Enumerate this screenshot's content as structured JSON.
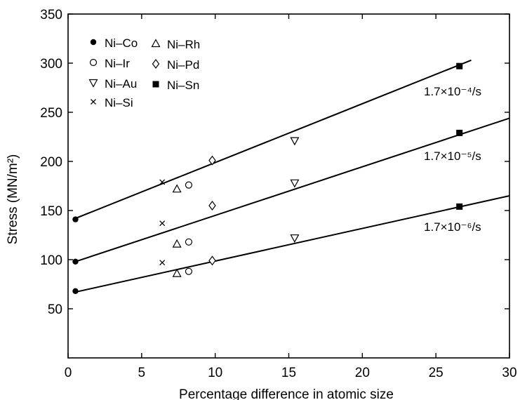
{
  "chart_data": {
    "type": "scatter",
    "xlabel": "Percentage difference in atomic size",
    "ylabel": "Stress (MN/m²)",
    "xlim": [
      0,
      30
    ],
    "ylim": [
      0,
      350
    ],
    "x_ticks": [
      0,
      5,
      10,
      15,
      20,
      25,
      30
    ],
    "y_ticks": [
      50,
      100,
      150,
      200,
      250,
      300,
      350
    ],
    "grid": false,
    "legend_position": "top-left",
    "legend": [
      {
        "name": "Ni–Co",
        "marker": "filled-circle"
      },
      {
        "name": "Ni–Ir",
        "marker": "open-circle"
      },
      {
        "name": "Ni–Au",
        "marker": "open-triangle-down"
      },
      {
        "name": "Ni–Si",
        "marker": "cross"
      },
      {
        "name": "Ni–Rh",
        "marker": "open-triangle-up"
      },
      {
        "name": "Ni–Pd",
        "marker": "open-diamond"
      },
      {
        "name": "Ni–Sn",
        "marker": "filled-square"
      }
    ],
    "series": [
      {
        "name": "Ni–Co",
        "marker": "filled-circle",
        "points": [
          {
            "x": 0.5,
            "y": 141
          },
          {
            "x": 0.5,
            "y": 98
          },
          {
            "x": 0.5,
            "y": 68
          }
        ]
      },
      {
        "name": "Ni–Si",
        "marker": "cross",
        "points": [
          {
            "x": 6.4,
            "y": 179
          },
          {
            "x": 6.4,
            "y": 137
          },
          {
            "x": 6.4,
            "y": 97
          }
        ]
      },
      {
        "name": "Ni–Rh",
        "marker": "open-triangle-up",
        "points": [
          {
            "x": 7.4,
            "y": 172
          },
          {
            "x": 7.4,
            "y": 116
          },
          {
            "x": 7.4,
            "y": 86
          }
        ]
      },
      {
        "name": "Ni–Ir",
        "marker": "open-circle",
        "points": [
          {
            "x": 8.2,
            "y": 176
          },
          {
            "x": 8.2,
            "y": 118
          },
          {
            "x": 8.2,
            "y": 88
          }
        ]
      },
      {
        "name": "Ni–Pd",
        "marker": "open-diamond",
        "points": [
          {
            "x": 9.8,
            "y": 201
          },
          {
            "x": 9.8,
            "y": 155
          },
          {
            "x": 9.8,
            "y": 99
          }
        ]
      },
      {
        "name": "Ni–Au",
        "marker": "open-triangle-down",
        "points": [
          {
            "x": 15.4,
            "y": 221
          },
          {
            "x": 15.4,
            "y": 178
          },
          {
            "x": 15.4,
            "y": 122
          }
        ]
      },
      {
        "name": "Ni–Sn",
        "marker": "filled-square",
        "points": [
          {
            "x": 26.6,
            "y": 297
          },
          {
            "x": 26.6,
            "y": 229
          },
          {
            "x": 26.6,
            "y": 154
          }
        ]
      }
    ],
    "fit_lines": [
      {
        "label": "1.7×10⁻⁴/s",
        "x": [
          0.5,
          27.4
        ],
        "y": [
          142,
          303
        ]
      },
      {
        "label": "1.7×10⁻⁵/s",
        "x": [
          0.5,
          30
        ],
        "y": [
          98,
          244
        ]
      },
      {
        "label": "1.7×10⁻⁶/s",
        "x": [
          0.5,
          30
        ],
        "y": [
          67,
          165
        ]
      }
    ]
  }
}
